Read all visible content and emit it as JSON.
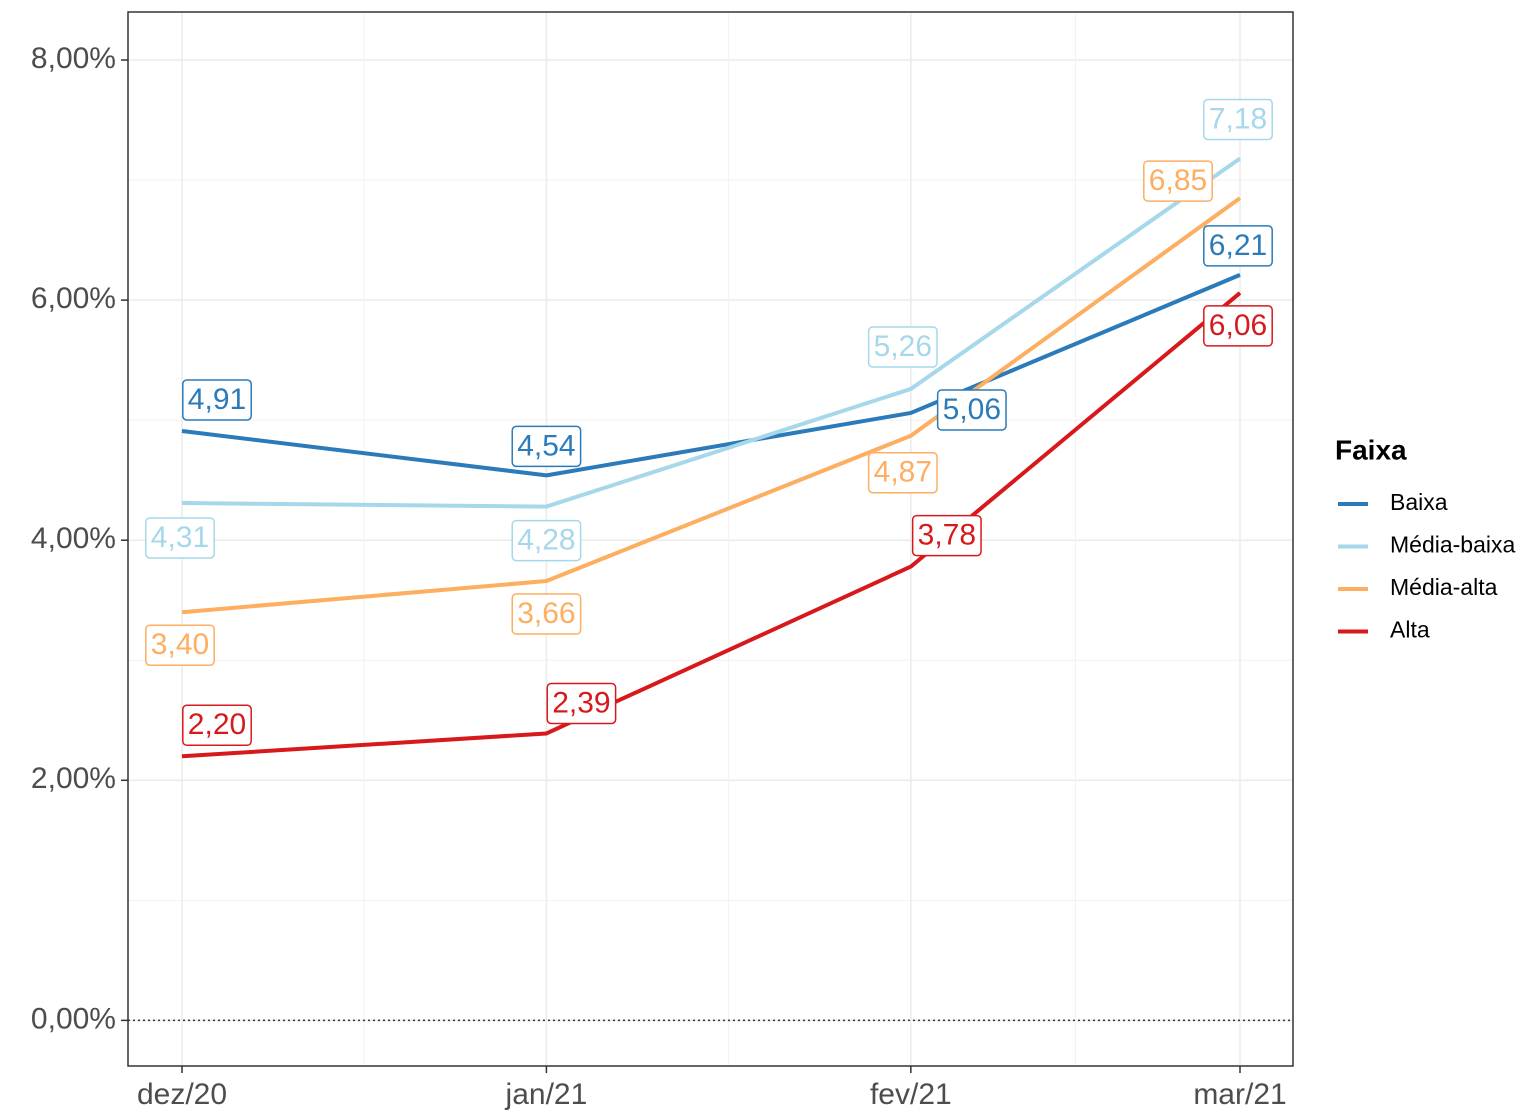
{
  "chart_data": {
    "type": "line",
    "x": [
      "2020-12",
      "2021-01",
      "2021-02",
      "2021-03"
    ],
    "xticks": [
      {
        "value": "2020-12",
        "label": "dez/20"
      },
      {
        "value": "2021-01",
        "label": "jan/21"
      },
      {
        "value": "2021-02",
        "label": "fev/21"
      },
      {
        "value": "2021-03",
        "label": "mar/21"
      }
    ],
    "ylim": [
      -0.38,
      8.4
    ],
    "yticks": [
      {
        "value": 0,
        "label": "0,00%"
      },
      {
        "value": 2,
        "label": "2,00%"
      },
      {
        "value": 4,
        "label": "4,00%"
      },
      {
        "value": 6,
        "label": "6,00%"
      },
      {
        "value": 8,
        "label": "8,00%"
      }
    ],
    "grid": true,
    "reference_line": 0,
    "legend_title": "Faixa",
    "legend": "right",
    "series": [
      {
        "name": "Baixa",
        "color": "#2b7bba",
        "values": [
          4.91,
          4.54,
          5.06,
          6.21
        ],
        "value_labels": [
          "4,91",
          "4,54",
          "5,06",
          "6,21"
        ]
      },
      {
        "name": "Média-baixa",
        "color": "#a6d7ea",
        "values": [
          4.31,
          4.28,
          5.26,
          7.18
        ],
        "value_labels": [
          "4,31",
          "4,28",
          "5,26",
          "7,18"
        ]
      },
      {
        "name": "Média-alta",
        "color": "#fdae61",
        "values": [
          3.4,
          3.66,
          4.87,
          6.85
        ],
        "value_labels": [
          "3,40",
          "3,66",
          "4,87",
          "6,85"
        ]
      },
      {
        "name": "Alta",
        "color": "#d7191c",
        "values": [
          2.2,
          2.39,
          3.78,
          6.06
        ],
        "value_labels": [
          "2,20",
          "2,39",
          "3,78",
          "6,06"
        ]
      }
    ]
  }
}
